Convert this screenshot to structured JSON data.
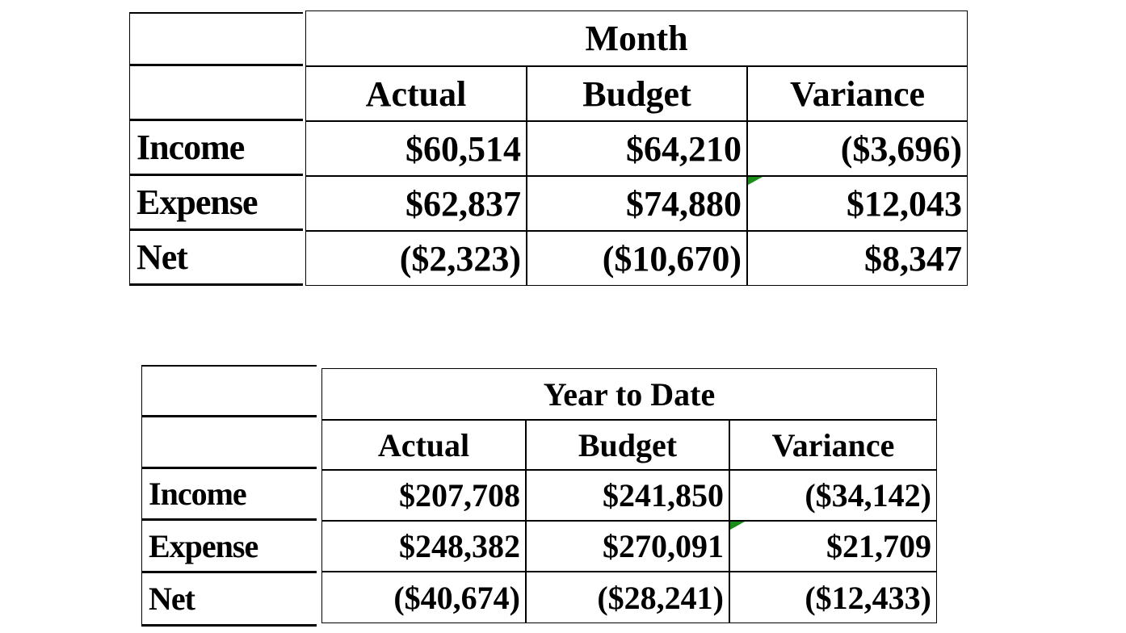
{
  "tables": [
    {
      "title": "Month",
      "columns": [
        "Actual",
        "Budget",
        "Variance"
      ],
      "rows": [
        {
          "label": "Income",
          "cells": [
            "$60,514",
            "$64,210",
            "($3,696)"
          ]
        },
        {
          "label": "Expense",
          "cells": [
            "$62,837",
            "$74,880",
            "$12,043"
          ]
        },
        {
          "label": "Net",
          "cells": [
            "($2,323)",
            "($10,670)",
            "$8,347"
          ]
        }
      ]
    },
    {
      "title": "Year to Date",
      "columns": [
        "Actual",
        "Budget",
        "Variance"
      ],
      "rows": [
        {
          "label": "Income",
          "cells": [
            "$207,708",
            "$241,850",
            "($34,142)"
          ]
        },
        {
          "label": "Expense",
          "cells": [
            "$248,382",
            "$270,091",
            "$21,709"
          ]
        },
        {
          "label": "Net",
          "cells": [
            "($40,674)",
            "($28,241)",
            "($12,433)"
          ]
        }
      ]
    }
  ]
}
